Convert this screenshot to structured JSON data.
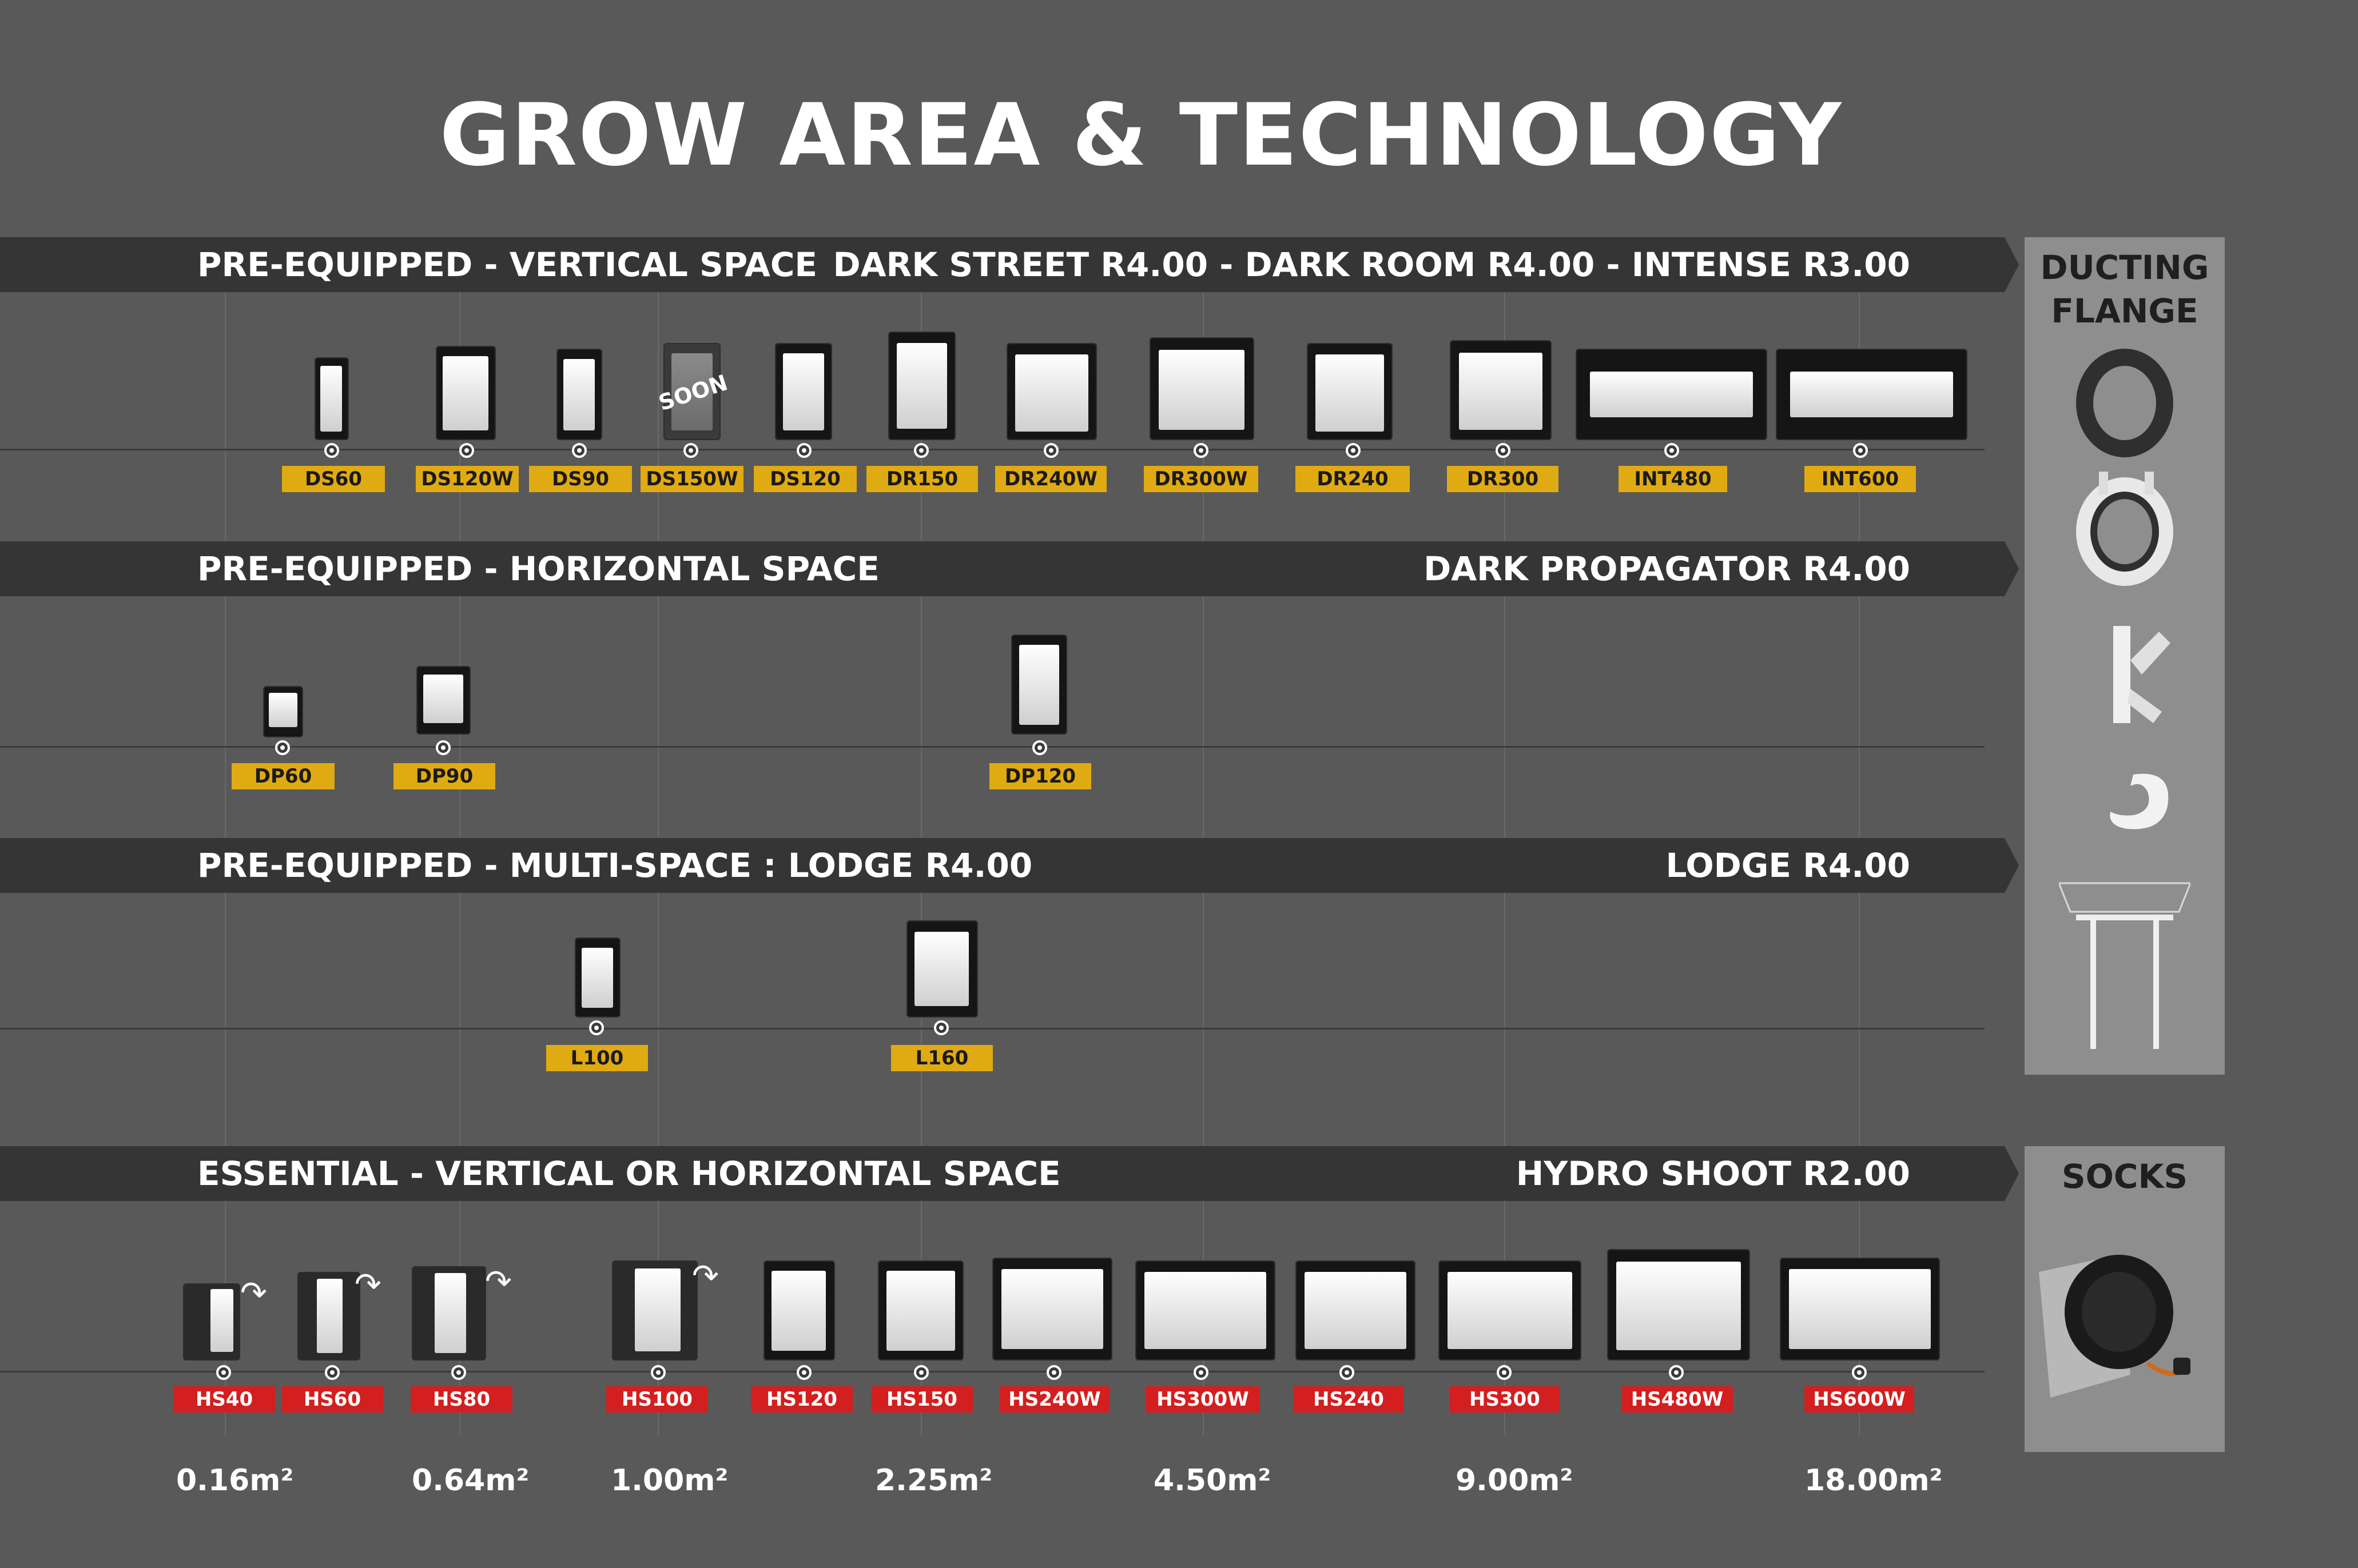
{
  "title": "GROW AREA & TECHNOLOGY",
  "sections": {
    "vertical": {
      "left": "PRE-EQUIPPED -  VERTICAL SPACE",
      "right": "DARK STREET R4.00 - DARK ROOM R4.00  - INTENSE R3.00"
    },
    "horizontal": {
      "left": "PRE-EQUIPPED -  HORIZONTAL SPACE",
      "right": "DARK PROPAGATOR R4.00"
    },
    "multi": {
      "left": "PRE-EQUIPPED -  MULTI-SPACE : LODGE R4.00",
      "right": "LODGE R4.00"
    },
    "essential": {
      "left": "ESSENTIAL - VERTICAL OR HORIZONTAL SPACE",
      "right": "HYDRO SHOOT R2.00"
    }
  },
  "side": {
    "ducting": "DUCTING\nFLANGE",
    "ducting_line1": "DUCTING",
    "ducting_line2": "FLANGE",
    "socks": "SOCKS"
  },
  "soon_badge": "SOON",
  "row1": [
    "DS60",
    "DS120W",
    "DS90",
    "DS150W",
    "DS120",
    "DR150",
    "DR240W",
    "DR300W",
    "DR240",
    "DR300",
    "INT480",
    "INT600"
  ],
  "row2": [
    "DP60",
    "DP90",
    "DP120"
  ],
  "row3": [
    "L100",
    "L160"
  ],
  "row4": [
    "HS40",
    "HS60",
    "HS80",
    "HS100",
    "HS120",
    "HS150",
    "HS240W",
    "HS300W",
    "HS240",
    "HS300",
    "HS480W",
    "HS600W"
  ],
  "areas": [
    "0.16m²",
    "0.64m²",
    "1.00m²",
    "2.25m²",
    "4.50m²",
    "9.00m²",
    "18.00m²"
  ],
  "colors": {
    "background": "#595959",
    "band": "#353535",
    "label_yellow": "#e0aa12",
    "label_red": "#d31f1f",
    "side_panel": "#8e8e8e"
  }
}
